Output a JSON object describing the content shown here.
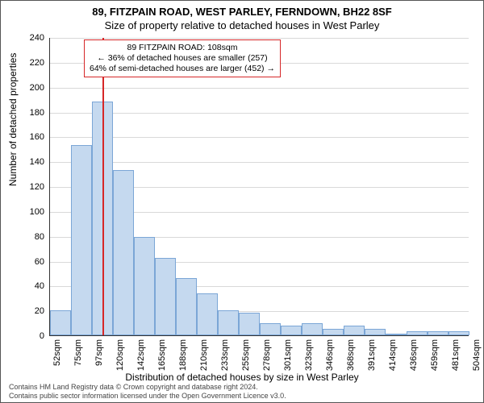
{
  "title_line1": "89, FITZPAIN ROAD, WEST PARLEY, FERNDOWN, BH22 8SF",
  "title_line2": "Size of property relative to detached houses in West Parley",
  "ylabel": "Number of detached properties",
  "xlabel": "Distribution of detached houses by size in West Parley",
  "chart": {
    "type": "histogram",
    "ylim": [
      0,
      240
    ],
    "ytick_step": 20,
    "background_color": "#ffffff",
    "grid_color": "#d9d9d9",
    "bar_fill": "#c5d9ef",
    "bar_border": "#7ba6d6",
    "marker_color": "#d62728",
    "marker_value": 108,
    "bin_start": 52,
    "bin_width_sqm": 22.5,
    "x_tick_labels": [
      "52sqm",
      "75sqm",
      "97sqm",
      "120sqm",
      "142sqm",
      "165sqm",
      "188sqm",
      "210sqm",
      "233sqm",
      "255sqm",
      "278sqm",
      "301sqm",
      "323sqm",
      "346sqm",
      "368sqm",
      "391sqm",
      "414sqm",
      "436sqm",
      "459sqm",
      "481sqm",
      "504sqm"
    ],
    "bar_values": [
      20,
      153,
      188,
      133,
      79,
      62,
      46,
      34,
      20,
      18,
      10,
      8,
      10,
      5,
      8,
      5,
      0,
      3,
      3,
      3
    ],
    "label_fontsize": 12,
    "tick_fontsize": 11
  },
  "annotation": {
    "line1": "89 FITZPAIN ROAD: 108sqm",
    "line2": "← 36% of detached houses are smaller (257)",
    "line3": "64% of semi-detached houses are larger (452) →"
  },
  "footer": {
    "line1": "Contains HM Land Registry data © Crown copyright and database right 2024.",
    "line2": "Contains public sector information licensed under the Open Government Licence v3.0."
  }
}
